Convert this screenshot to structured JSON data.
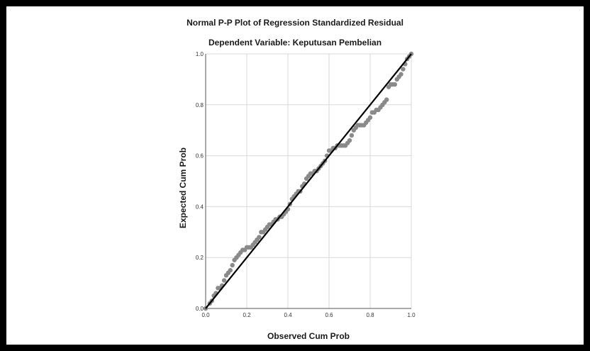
{
  "chart_data": {
    "type": "scatter",
    "title": "Normal P-P Plot of Regression Standardized Residual",
    "subtitle": "Dependent Variable: Keputusan Pembelian",
    "xlabel": "Observed Cum Prob",
    "ylabel": "Expected Cum Prob",
    "xlim": [
      0,
      1
    ],
    "ylim": [
      0,
      1
    ],
    "xticks": [
      "0.0",
      "0.2",
      "0.4",
      "0.6",
      "0.8",
      "1.0"
    ],
    "yticks": [
      "0.0",
      "0.2",
      "0.4",
      "0.6",
      "0.8",
      "1.0"
    ],
    "grid": true,
    "reference_line": {
      "from": [
        0,
        0
      ],
      "to": [
        1,
        1
      ]
    },
    "colors": {
      "points": "#8a8a8a",
      "line": "#000000",
      "grid": "#d9d9d9",
      "axis": "#555555"
    },
    "points": [
      [
        0.0,
        0.0
      ],
      [
        0.02,
        0.02
      ],
      [
        0.03,
        0.03
      ],
      [
        0.04,
        0.05
      ],
      [
        0.05,
        0.06
      ],
      [
        0.06,
        0.08
      ],
      [
        0.07,
        0.08
      ],
      [
        0.08,
        0.09
      ],
      [
        0.09,
        0.11
      ],
      [
        0.1,
        0.13
      ],
      [
        0.11,
        0.14
      ],
      [
        0.12,
        0.15
      ],
      [
        0.13,
        0.17
      ],
      [
        0.14,
        0.19
      ],
      [
        0.15,
        0.2
      ],
      [
        0.16,
        0.21
      ],
      [
        0.17,
        0.22
      ],
      [
        0.18,
        0.23
      ],
      [
        0.19,
        0.23
      ],
      [
        0.2,
        0.24
      ],
      [
        0.21,
        0.24
      ],
      [
        0.22,
        0.24
      ],
      [
        0.23,
        0.25
      ],
      [
        0.24,
        0.26
      ],
      [
        0.25,
        0.27
      ],
      [
        0.26,
        0.28
      ],
      [
        0.27,
        0.3
      ],
      [
        0.28,
        0.3
      ],
      [
        0.29,
        0.31
      ],
      [
        0.3,
        0.32
      ],
      [
        0.31,
        0.33
      ],
      [
        0.32,
        0.33
      ],
      [
        0.33,
        0.34
      ],
      [
        0.34,
        0.35
      ],
      [
        0.35,
        0.35
      ],
      [
        0.36,
        0.36
      ],
      [
        0.37,
        0.36
      ],
      [
        0.38,
        0.37
      ],
      [
        0.39,
        0.38
      ],
      [
        0.4,
        0.39
      ],
      [
        0.41,
        0.41
      ],
      [
        0.42,
        0.43
      ],
      [
        0.43,
        0.44
      ],
      [
        0.44,
        0.45
      ],
      [
        0.45,
        0.46
      ],
      [
        0.46,
        0.46
      ],
      [
        0.47,
        0.48
      ],
      [
        0.48,
        0.49
      ],
      [
        0.49,
        0.51
      ],
      [
        0.5,
        0.52
      ],
      [
        0.51,
        0.53
      ],
      [
        0.52,
        0.53
      ],
      [
        0.53,
        0.54
      ],
      [
        0.54,
        0.54
      ],
      [
        0.55,
        0.55
      ],
      [
        0.56,
        0.56
      ],
      [
        0.57,
        0.57
      ],
      [
        0.58,
        0.58
      ],
      [
        0.59,
        0.6
      ],
      [
        0.6,
        0.62
      ],
      [
        0.61,
        0.62
      ],
      [
        0.62,
        0.63
      ],
      [
        0.63,
        0.63
      ],
      [
        0.64,
        0.64
      ],
      [
        0.65,
        0.64
      ],
      [
        0.66,
        0.64
      ],
      [
        0.67,
        0.64
      ],
      [
        0.68,
        0.64
      ],
      [
        0.69,
        0.65
      ],
      [
        0.7,
        0.66
      ],
      [
        0.71,
        0.68
      ],
      [
        0.72,
        0.7
      ],
      [
        0.73,
        0.71
      ],
      [
        0.74,
        0.72
      ],
      [
        0.75,
        0.72
      ],
      [
        0.76,
        0.72
      ],
      [
        0.77,
        0.72
      ],
      [
        0.78,
        0.73
      ],
      [
        0.79,
        0.74
      ],
      [
        0.8,
        0.75
      ],
      [
        0.81,
        0.77
      ],
      [
        0.82,
        0.77
      ],
      [
        0.83,
        0.78
      ],
      [
        0.84,
        0.78
      ],
      [
        0.85,
        0.79
      ],
      [
        0.86,
        0.8
      ],
      [
        0.87,
        0.81
      ],
      [
        0.88,
        0.82
      ],
      [
        0.89,
        0.87
      ],
      [
        0.9,
        0.88
      ],
      [
        0.91,
        0.88
      ],
      [
        0.92,
        0.88
      ],
      [
        0.93,
        0.9
      ],
      [
        0.94,
        0.91
      ],
      [
        0.95,
        0.92
      ],
      [
        0.96,
        0.94
      ],
      [
        0.97,
        0.96
      ],
      [
        0.98,
        0.98
      ],
      [
        0.99,
        0.99
      ],
      [
        1.0,
        1.0
      ]
    ]
  }
}
